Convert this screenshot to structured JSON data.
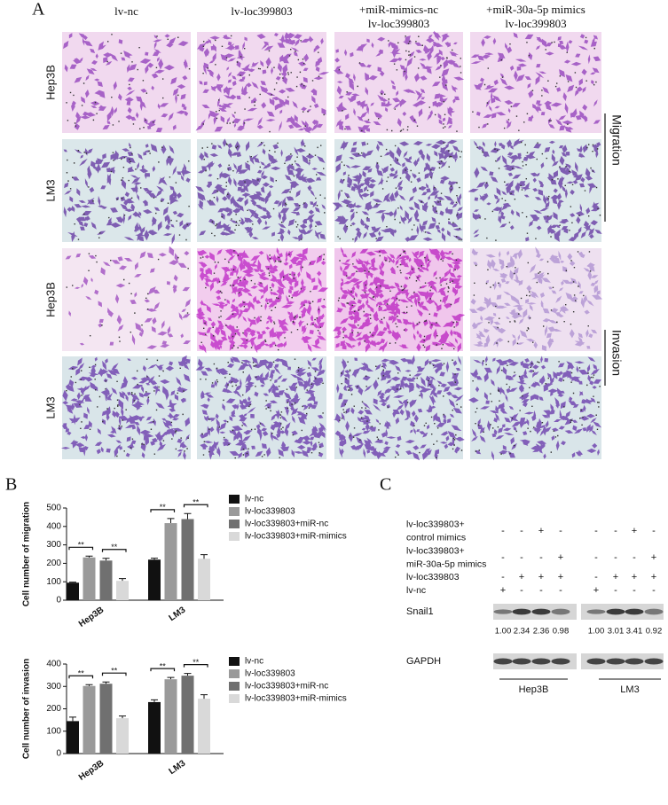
{
  "panel_labels": [
    "A",
    "B",
    "C"
  ],
  "panel_a": {
    "columns": [
      [
        "lv-nc"
      ],
      [
        "lv-loc399803"
      ],
      [
        "+miR-mimics-nc",
        "lv-loc399803"
      ],
      [
        "+miR-30a-5p mimics",
        "lv-loc399803"
      ]
    ],
    "rows": [
      "Hep3B",
      "LM3",
      "Hep3B",
      "LM3"
    ],
    "groups": [
      "Migration",
      "Invasion"
    ]
  },
  "chart_data": [
    {
      "type": "bar",
      "ylabel": "Cell number of migration",
      "categories": [
        "Hep3B",
        "LM3"
      ],
      "series": [
        {
          "name": "lv-nc",
          "color": "#111111",
          "values": [
            95,
            220
          ],
          "errors": [
            3,
            8
          ]
        },
        {
          "name": "lv-loc339803",
          "color": "#9a9a9a",
          "values": [
            232,
            418
          ],
          "errors": [
            7,
            25
          ]
        },
        {
          "name": "lv-loc339803+miR-nc",
          "color": "#707070",
          "values": [
            215,
            440
          ],
          "errors": [
            12,
            30
          ]
        },
        {
          "name": "lv-loc339803+miR-mimics",
          "color": "#d9d9d9",
          "values": [
            105,
            225
          ],
          "errors": [
            12,
            22
          ]
        }
      ],
      "significance": [
        [
          "**",
          "**"
        ],
        [
          "**",
          "**"
        ]
      ],
      "ylim": [
        0,
        500
      ],
      "yticks": [
        0,
        100,
        200,
        300,
        400,
        500
      ],
      "legend": "right"
    },
    {
      "type": "bar",
      "ylabel": "Cell number of invasion",
      "categories": [
        "Hep3B",
        "LM3"
      ],
      "series": [
        {
          "name": "lv-nc",
          "color": "#111111",
          "values": [
            145,
            230
          ],
          "errors": [
            18,
            10
          ]
        },
        {
          "name": "lv-loc339803",
          "color": "#9a9a9a",
          "values": [
            302,
            332
          ],
          "errors": [
            6,
            8
          ]
        },
        {
          "name": "lv-loc339803+miR-nc",
          "color": "#707070",
          "values": [
            312,
            348
          ],
          "errors": [
            8,
            10
          ]
        },
        {
          "name": "lv-loc339803+miR-mimics",
          "color": "#d9d9d9",
          "values": [
            158,
            245
          ],
          "errors": [
            10,
            18
          ]
        }
      ],
      "significance": [
        [
          "**",
          "**"
        ],
        [
          "**",
          "**"
        ]
      ],
      "ylim": [
        0,
        400
      ],
      "yticks": [
        0,
        100,
        200,
        300,
        400
      ],
      "legend": "right"
    }
  ],
  "panel_c": {
    "conditions": [
      {
        "label": [
          "lv-loc339803+",
          "control mimics"
        ],
        "signs": [
          "-",
          "-",
          "+",
          "-",
          "-",
          "-",
          "+",
          "-"
        ]
      },
      {
        "label": [
          "lv-loc339803+",
          "miR-30a-5p mimics"
        ],
        "signs": [
          "-",
          "-",
          "-",
          "+",
          "-",
          "-",
          "-",
          "+"
        ]
      },
      {
        "label": [
          "lv-loc339803"
        ],
        "signs": [
          "-",
          "+",
          "+",
          "+",
          "-",
          "+",
          "+",
          "+"
        ]
      },
      {
        "label": [
          "lv-nc"
        ],
        "signs": [
          "+",
          "-",
          "-",
          "-",
          "+",
          "-",
          "-",
          "-"
        ]
      }
    ],
    "blots": [
      "Snail1",
      "GAPDH"
    ],
    "quantification": [
      "1.00",
      "2.34",
      "2.36",
      "0.98",
      "1.00",
      "3.01",
      "3.41",
      "0.92"
    ],
    "cell_lines": [
      "Hep3B",
      "LM3"
    ]
  }
}
